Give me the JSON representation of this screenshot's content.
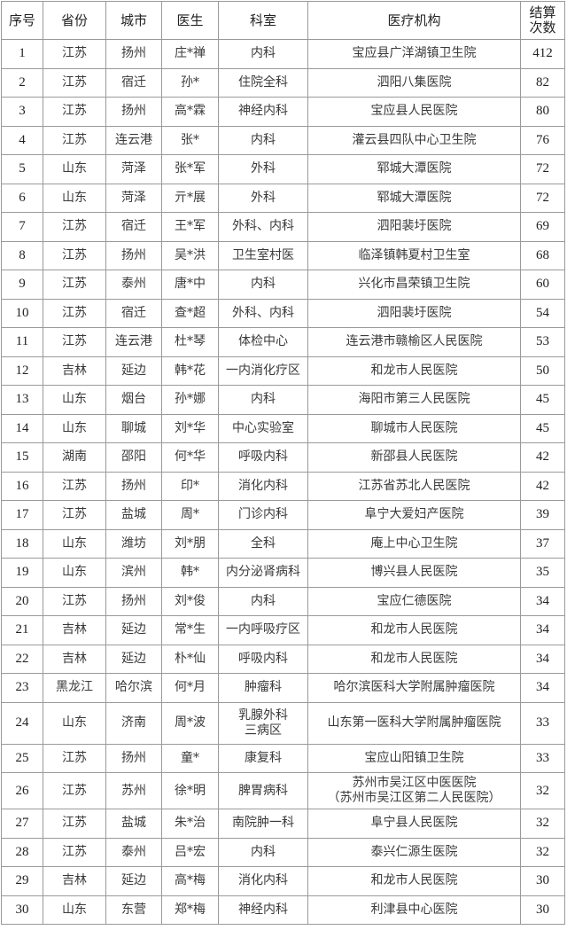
{
  "table": {
    "headers": [
      "序号",
      "省份",
      "城市",
      "医生",
      "科室",
      "医疗机构",
      "结算\n次数"
    ],
    "header_count_line1": "结算",
    "header_count_line2": "次数",
    "rows": [
      [
        "1",
        "江苏",
        "扬州",
        "庄*禅",
        "内科",
        "宝应县广洋湖镇卫生院",
        "412"
      ],
      [
        "2",
        "江苏",
        "宿迁",
        "孙*",
        "住院全科",
        "泗阳八集医院",
        "82"
      ],
      [
        "3",
        "江苏",
        "扬州",
        "高*霖",
        "神经内科",
        "宝应县人民医院",
        "80"
      ],
      [
        "4",
        "江苏",
        "连云港",
        "张*",
        "内科",
        "灌云县四队中心卫生院",
        "76"
      ],
      [
        "5",
        "山东",
        "菏泽",
        "张*军",
        "外科",
        "郓城大潭医院",
        "72"
      ],
      [
        "6",
        "山东",
        "菏泽",
        "亓*展",
        "外科",
        "郓城大潭医院",
        "72"
      ],
      [
        "7",
        "江苏",
        "宿迁",
        "王*军",
        "外科、内科",
        "泗阳裴圩医院",
        "69"
      ],
      [
        "8",
        "江苏",
        "扬州",
        "吴*洪",
        "卫生室村医",
        "临泽镇韩夏村卫生室",
        "68"
      ],
      [
        "9",
        "江苏",
        "泰州",
        "唐*中",
        "内科",
        "兴化市昌荣镇卫生院",
        "60"
      ],
      [
        "10",
        "江苏",
        "宿迁",
        "查*超",
        "外科、内科",
        "泗阳裴圩医院",
        "54"
      ],
      [
        "11",
        "江苏",
        "连云港",
        "杜*琴",
        "体检中心",
        "连云港市赣榆区人民医院",
        "53"
      ],
      [
        "12",
        "吉林",
        "延边",
        "韩*花",
        "一内消化疗区",
        "和龙市人民医院",
        "50"
      ],
      [
        "13",
        "山东",
        "烟台",
        "孙*娜",
        "内科",
        "海阳市第三人民医院",
        "45"
      ],
      [
        "14",
        "山东",
        "聊城",
        "刘*华",
        "中心实验室",
        "聊城市人民医院",
        "45"
      ],
      [
        "15",
        "湖南",
        "邵阳",
        "何*华",
        "呼吸内科",
        "新邵县人民医院",
        "42"
      ],
      [
        "16",
        "江苏",
        "扬州",
        "印*",
        "消化内科",
        "江苏省苏北人民医院",
        "42"
      ],
      [
        "17",
        "江苏",
        "盐城",
        "周*",
        "门诊内科",
        "阜宁大爱妇产医院",
        "39"
      ],
      [
        "18",
        "山东",
        "潍坊",
        "刘*朋",
        "全科",
        "庵上中心卫生院",
        "37"
      ],
      [
        "19",
        "山东",
        "滨州",
        "韩*",
        "内分泌肾病科",
        "博兴县人民医院",
        "35"
      ],
      [
        "20",
        "江苏",
        "扬州",
        "刘*俊",
        "内科",
        "宝应仁德医院",
        "34"
      ],
      [
        "21",
        "吉林",
        "延边",
        "常*生",
        "一内呼吸疗区",
        "和龙市人民医院",
        "34"
      ],
      [
        "22",
        "吉林",
        "延边",
        "朴*仙",
        "呼吸内科",
        "和龙市人民医院",
        "34"
      ],
      [
        "23",
        "黑龙江",
        "哈尔滨",
        "何*月",
        "肿瘤科",
        "哈尔滨医科大学附属肿瘤医院",
        "34"
      ],
      [
        "24",
        "山东",
        "济南",
        "周*波",
        "乳腺外科\n三病区",
        "山东第一医科大学附属肿瘤医院",
        "33"
      ],
      [
        "25",
        "江苏",
        "扬州",
        "童*",
        "康复科",
        "宝应山阳镇卫生院",
        "33"
      ],
      [
        "26",
        "江苏",
        "苏州",
        "徐*明",
        "脾胃病科",
        "苏州市吴江区中医医院\n（苏州市吴江区第二人民医院）",
        "32"
      ],
      [
        "27",
        "江苏",
        "盐城",
        "朱*治",
        "南院肿一科",
        "阜宁县人民医院",
        "32"
      ],
      [
        "28",
        "江苏",
        "泰州",
        "吕*宏",
        "内科",
        "泰兴仁源生医院",
        "32"
      ],
      [
        "29",
        "吉林",
        "延边",
        "高*梅",
        "消化内科",
        "和龙市人民医院",
        "30"
      ],
      [
        "30",
        "山东",
        "东营",
        "郑*梅",
        "神经内科",
        "利津县中心医院",
        "30"
      ]
    ]
  }
}
